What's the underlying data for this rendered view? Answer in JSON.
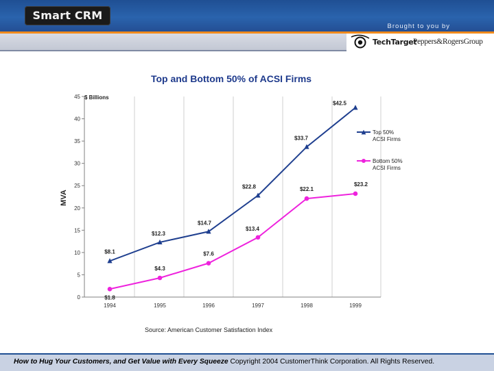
{
  "header": {
    "logo_text": "Smart CRM",
    "brought_by": "Brought to you by",
    "sponsor_techtarget": "TechTarget",
    "sponsor_peppers": "Peppers&RogersGroup"
  },
  "source_note": "Source: American Customer Satisfaction Index",
  "footer": {
    "title": "How to Hug Your Customers, and Get Value with Every Squeeze",
    "copyright": "Copyright 2004 CustomerThink Corporation. All Rights Reserved."
  },
  "colors": {
    "header_blue": "#2a63ad",
    "accent_orange": "#f08a1c",
    "top_series": "#1f3f8f",
    "bottom_series": "#ee22dd",
    "title_blue": "#1e3a8c"
  },
  "chart_data": {
    "type": "line",
    "title": "Top and Bottom 50% of ACSI Firms",
    "ylabel": "MVA",
    "yunit": "$ Billions",
    "xlabel": "",
    "x": [
      "1994",
      "1995",
      "1996",
      "1997",
      "1998",
      "1999"
    ],
    "ylim": [
      0,
      45
    ],
    "yticks": [
      0,
      5,
      10,
      15,
      20,
      25,
      30,
      35,
      40,
      45
    ],
    "grid": "vertical",
    "legend": "right",
    "series": [
      {
        "name": "Top 50% ACSI Firms",
        "values": [
          8.1,
          12.3,
          14.7,
          22.8,
          33.7,
          42.5
        ],
        "labels": [
          "$8.1",
          "$12.3",
          "$14.7",
          "$22.8",
          "$33.7",
          "$42.5"
        ],
        "marker": "triangle",
        "color": "#1f3f8f"
      },
      {
        "name": "Bottom 50% ACSI Firms",
        "values": [
          1.8,
          4.3,
          7.6,
          13.4,
          22.1,
          23.2
        ],
        "labels": [
          "$1.8",
          "$4.3",
          "$7.6",
          "$13.4",
          "$22.1",
          "$23.2"
        ],
        "marker": "circle",
        "color": "#ee22dd"
      }
    ]
  }
}
